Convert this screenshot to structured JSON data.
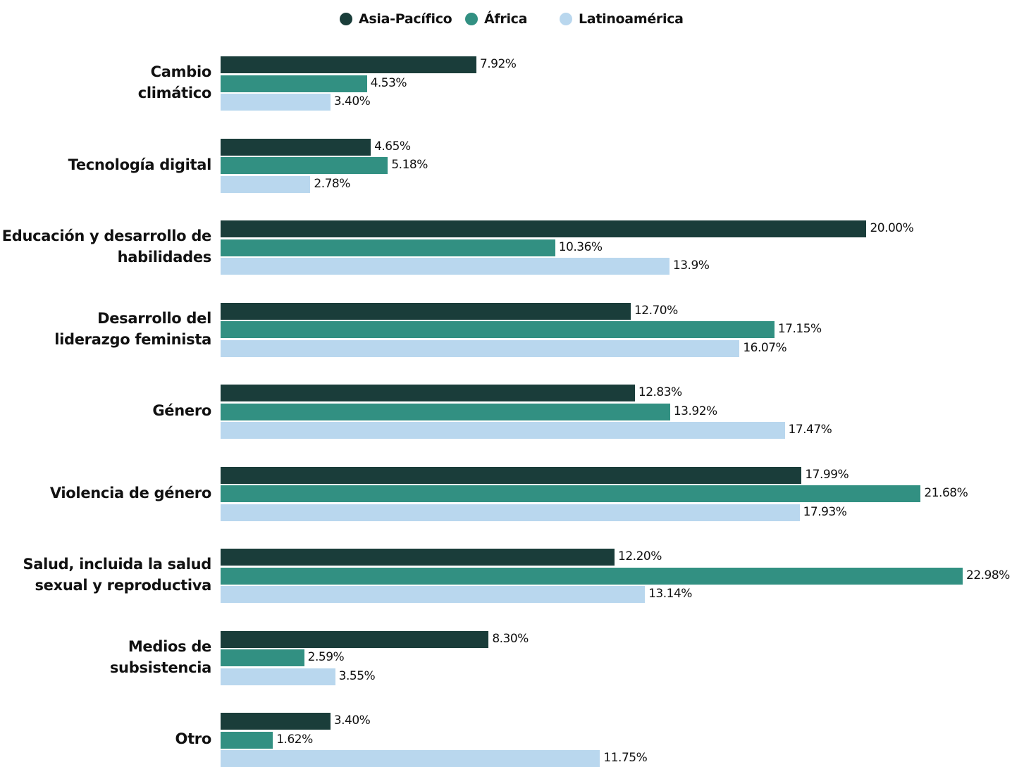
{
  "chart_data": {
    "type": "bar",
    "orientation": "horizontal",
    "categories": [
      "Cambio\nclimático",
      "Tecnología digital",
      "Educación y desarrollo de\nhabilidades",
      "Desarrollo del\nliderazgo feminista",
      "Género",
      "Violencia de género",
      "Salud, incluida la salud\nsexual y reproductiva",
      "Medios de\nsubsistencia",
      "Otro"
    ],
    "series": [
      {
        "name": "Asia-Pacífico",
        "color": "#1a3d3a",
        "values": [
          7.92,
          4.65,
          20.0,
          12.7,
          12.83,
          17.99,
          12.2,
          8.3,
          3.4
        ],
        "value_labels": [
          "7.92%",
          "4.65%",
          "20.00%",
          "12.70%",
          "12.83%",
          "17.99%",
          "12.20%",
          "8.30%",
          "3.40%"
        ]
      },
      {
        "name": "África",
        "color": "#329082",
        "values": [
          4.53,
          5.18,
          10.36,
          17.15,
          13.92,
          21.68,
          22.98,
          2.59,
          1.62
        ],
        "value_labels": [
          "4.53%",
          "5.18%",
          "10.36%",
          "17.15%",
          "13.92%",
          "21.68%",
          "22.98%",
          "2.59%",
          "1.62%"
        ]
      },
      {
        "name": "Latinoamérica",
        "color": "#b9d7ee",
        "values": [
          3.4,
          2.78,
          13.9,
          16.07,
          17.47,
          17.93,
          13.14,
          3.55,
          11.75
        ],
        "value_labels": [
          "3.40%",
          "2.78%",
          "13.9%",
          "16.07%",
          "17.47%",
          "17.93%",
          "13.14%",
          "3.55%",
          "11.75%"
        ]
      }
    ],
    "legend": "top"
  }
}
